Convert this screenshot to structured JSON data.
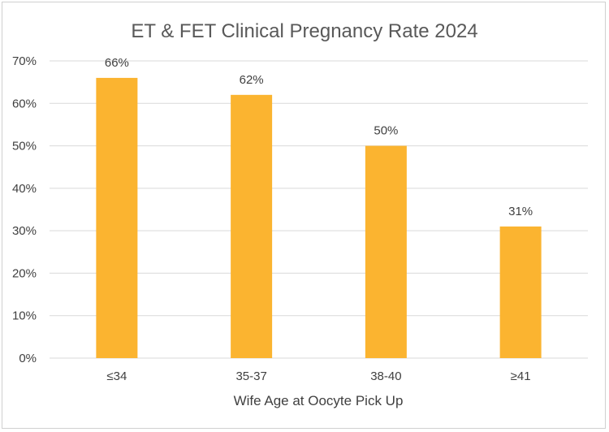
{
  "chart_data": {
    "type": "bar",
    "title": "ET & FET Clinical Pregnancy Rate 2024",
    "xlabel": "Wife Age at Oocyte Pick Up",
    "ylabel": "",
    "categories": [
      "≤34",
      "35-37",
      "38-40",
      "≥41"
    ],
    "values": [
      66,
      62,
      50,
      31
    ],
    "data_labels": [
      "66%",
      "62%",
      "50%",
      "31%"
    ],
    "ylim": [
      0,
      70
    ],
    "y_ticks": [
      0,
      10,
      20,
      30,
      40,
      50,
      60,
      70
    ],
    "y_tick_labels": [
      "0%",
      "10%",
      "20%",
      "30%",
      "40%",
      "50%",
      "60%",
      "70%"
    ],
    "grid": true,
    "legend": "none",
    "bar_color": "#FBB430",
    "grid_color": "#D9D9D9"
  }
}
